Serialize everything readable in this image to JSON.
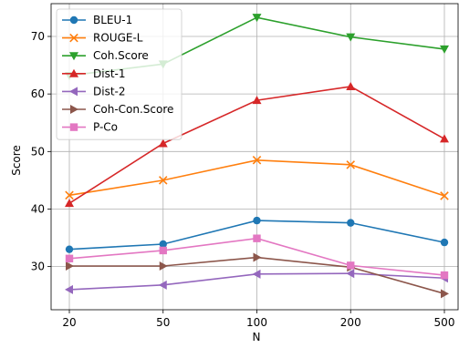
{
  "chart_data": {
    "type": "line",
    "title": "",
    "xlabel": "N",
    "ylabel": "Score",
    "categories": [
      "20",
      "50",
      "100",
      "200",
      "500"
    ],
    "ylim": [
      22.5,
      75.7
    ],
    "yticks": [
      30,
      40,
      50,
      60,
      70
    ],
    "grid": true,
    "legend_position": "top-left",
    "series": [
      {
        "name": "BLEU-1",
        "color": "#1f77b4",
        "marker": "circle",
        "values": [
          33.0,
          33.9,
          38.0,
          37.6,
          34.2
        ]
      },
      {
        "name": "ROUGE-L",
        "color": "#ff7f0e",
        "marker": "x",
        "values": [
          42.4,
          45.0,
          48.5,
          47.7,
          42.3
        ]
      },
      {
        "name": "Coh.Score",
        "color": "#2ca02c",
        "marker": "triangle-down",
        "values": [
          63.2,
          65.2,
          73.3,
          69.9,
          67.8
        ]
      },
      {
        "name": "Dist-1",
        "color": "#d62728",
        "marker": "triangle-up",
        "values": [
          41.0,
          51.4,
          58.9,
          61.3,
          52.2
        ]
      },
      {
        "name": "Dist-2",
        "color": "#9467bd",
        "marker": "triangle-left",
        "values": [
          26.0,
          26.8,
          28.7,
          28.8,
          28.0
        ]
      },
      {
        "name": "Coh-Con.Score",
        "color": "#8c564b",
        "marker": "triangle-right",
        "values": [
          30.1,
          30.1,
          31.6,
          29.9,
          25.3
        ]
      },
      {
        "name": "P-Co",
        "color": "#e377c2",
        "marker": "square",
        "values": [
          31.4,
          32.8,
          34.9,
          30.2,
          28.5
        ]
      }
    ]
  }
}
